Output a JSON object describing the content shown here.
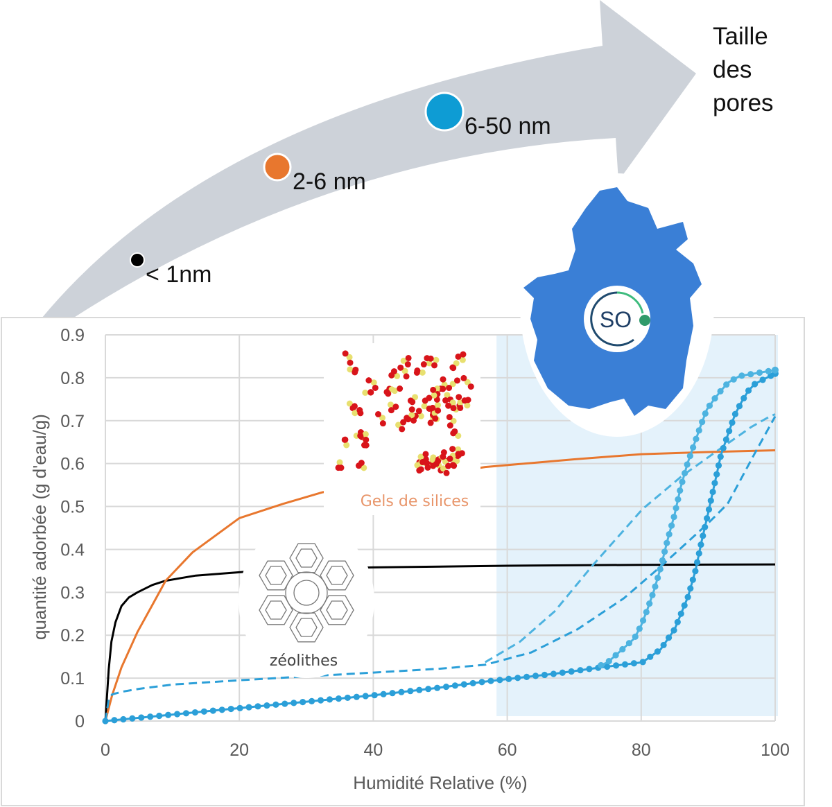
{
  "arrow": {
    "title_lines": [
      "Taille",
      "des",
      "pores"
    ],
    "markers": [
      {
        "label": "< 1nm",
        "color": "#000000"
      },
      {
        "label": "2-6 nm",
        "color": "#e8772e"
      },
      {
        "label": "6-50 nm",
        "color": "#0e9cd4"
      }
    ]
  },
  "illustrations": {
    "silica_label": "Gels de silices",
    "zeolite_label": "zéolithes",
    "logo_text": "SO"
  },
  "chart_data": {
    "type": "line",
    "title": "",
    "xlabel": "Humidité Relative (%)",
    "ylabel": "quantité adorbée (g d'eau/g)",
    "xlim": [
      0,
      100
    ],
    "ylim": [
      0,
      0.9
    ],
    "xticks": [
      "0",
      "20",
      "40",
      "60",
      "80",
      "100"
    ],
    "yticks": [
      "0",
      "0.1",
      "0.2",
      "0.3",
      "0.4",
      "0.5",
      "0.6",
      "0.7",
      "0.8",
      "0.9"
    ],
    "grid": true,
    "legend": "none",
    "highlight_region": {
      "x": [
        58.4,
        100
      ],
      "color": "#e4f2fb"
    },
    "series": [
      {
        "color": "#000000",
        "style": "solid",
        "x": [
          0,
          0.5,
          0.9,
          1.5,
          2.4,
          3.5,
          4.8,
          7,
          9,
          13.5,
          21,
          30,
          40,
          60,
          80,
          100
        ],
        "y": [
          0,
          0.12,
          0.185,
          0.23,
          0.268,
          0.288,
          0.3,
          0.317,
          0.327,
          0.339,
          0.348,
          0.354,
          0.358,
          0.362,
          0.364,
          0.365
        ]
      },
      {
        "color": "#e8772e",
        "style": "solid",
        "x": [
          0,
          1,
          2.4,
          4.8,
          7,
          9,
          13,
          20,
          26.5,
          32.4,
          40,
          50,
          56.7,
          70,
          80,
          90,
          100
        ],
        "y": [
          0,
          0.06,
          0.125,
          0.208,
          0.27,
          0.327,
          0.393,
          0.473,
          0.506,
          0.533,
          0.555,
          0.575,
          0.592,
          0.61,
          0.622,
          0.627,
          0.631
        ]
      },
      {
        "color": "#2b9fd8",
        "style": "dashed",
        "x": [
          0,
          0.5,
          1,
          2.4,
          5,
          10,
          20,
          30,
          40,
          50,
          56.7,
          63.6,
          70.5,
          77.4,
          82.9,
          89.8,
          92.9,
          97,
          100
        ],
        "y": [
          0,
          0.05,
          0.062,
          0.068,
          0.075,
          0.085,
          0.095,
          0.104,
          0.113,
          0.122,
          0.131,
          0.16,
          0.214,
          0.286,
          0.36,
          0.458,
          0.506,
          0.625,
          0.71
        ]
      },
      {
        "color": "#4db3e0",
        "style": "dashed",
        "x": [
          56.7,
          61.9,
          67.1,
          72.6,
          80.2,
          86,
          91.2,
          96.4,
          99,
          100
        ],
        "y": [
          0.137,
          0.185,
          0.256,
          0.36,
          0.494,
          0.57,
          0.628,
          0.685,
          0.708,
          0.715
        ]
      },
      {
        "color": "#2b9fd8",
        "style": "solid-markers",
        "x": [
          0,
          10,
          20,
          30,
          40,
          50,
          56.7,
          67,
          74,
          80.2,
          82.9,
          85,
          87,
          88.1,
          89,
          90,
          91,
          91.9,
          93,
          94,
          95,
          96,
          97,
          100
        ],
        "y": [
          0,
          0.015,
          0.03,
          0.045,
          0.06,
          0.078,
          0.092,
          0.11,
          0.125,
          0.137,
          0.167,
          0.214,
          0.29,
          0.35,
          0.417,
          0.485,
          0.556,
          0.62,
          0.67,
          0.714,
          0.744,
          0.77,
          0.786,
          0.81
        ]
      },
      {
        "color": "#4db3e0",
        "style": "solid-markers",
        "x": [
          74,
          75,
          77.4,
          79,
          80,
          80.9,
          81.9,
          82.9,
          83.9,
          85,
          85.9,
          86.9,
          88,
          89,
          89.8,
          90.9,
          91.9,
          93,
          94.7,
          100
        ],
        "y": [
          0.13,
          0.137,
          0.17,
          0.193,
          0.223,
          0.259,
          0.304,
          0.357,
          0.42,
          0.482,
          0.545,
          0.6,
          0.649,
          0.693,
          0.726,
          0.75,
          0.77,
          0.789,
          0.804,
          0.818
        ]
      }
    ]
  }
}
